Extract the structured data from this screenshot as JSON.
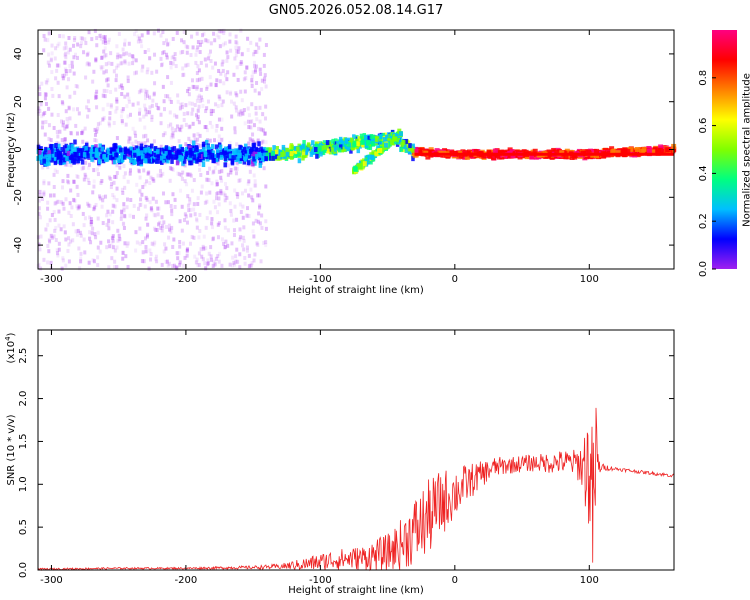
{
  "chart_data": [
    {
      "type": "heatmap",
      "title": "GN05.2026.052.08.14.G17",
      "xlabel": "Height of straight line (km)",
      "ylabel": "Frequency (Hz)",
      "xlim": [
        -310,
        163
      ],
      "ylim": [
        -50,
        50
      ],
      "xticks": [
        -300,
        -200,
        -100,
        0,
        100
      ],
      "yticks": [
        -40,
        -20,
        0,
        20,
        40
      ],
      "grid": false,
      "colorbar": {
        "label": "Normalized spectral amplitude",
        "range": [
          0,
          1
        ],
        "ticks": [
          0.0,
          0.2,
          0.4,
          0.6,
          0.8
        ],
        "colormap": [
          "#a020f0",
          "#0000ff",
          "#00bfff",
          "#00ff80",
          "#80ff00",
          "#ffff00",
          "#ff8000",
          "#ff0000",
          "#ff0080"
        ]
      },
      "ridge": [
        {
          "x": -310,
          "freq": -2
        },
        {
          "x": -140,
          "freq": -2
        },
        {
          "x": -120,
          "freq": -1
        },
        {
          "x": -90,
          "freq": 1
        },
        {
          "x": -60,
          "freq": 4
        },
        {
          "x": -45,
          "freq": 5
        },
        {
          "x": -30,
          "freq": -1
        },
        {
          "x": 0,
          "freq": -2
        },
        {
          "x": 100,
          "freq": -2
        },
        {
          "x": 163,
          "freq": 0
        }
      ],
      "secondary_ridge": [
        {
          "x": -75,
          "freq": -9
        },
        {
          "x": -50,
          "freq": 2
        },
        {
          "x": -40,
          "freq": 7
        }
      ]
    },
    {
      "type": "line",
      "title": "",
      "xlabel": "Height of straight line (km)",
      "ylabel": "SNR (10 * v/v)",
      "y_scale_label": "(x10",
      "y_scale_exponent": "4",
      "xlim": [
        -310,
        163
      ],
      "ylim": [
        0,
        2.8
      ],
      "xticks": [
        -300,
        -200,
        -100,
        0,
        100
      ],
      "yticks": [
        0.0,
        0.5,
        1.0,
        1.5,
        2.0,
        2.5
      ],
      "grid": false,
      "line_color": "#ee2222",
      "series": [
        {
          "x": [
            -310,
            -250,
            -200,
            -150,
            -130,
            -110,
            -90,
            -70,
            -50,
            -40,
            -30,
            -20,
            -10,
            0,
            10,
            20,
            30,
            40,
            50,
            60,
            70,
            80,
            90,
            95,
            100,
            103,
            105,
            107,
            110,
            120,
            140,
            163
          ],
          "y": [
            0.01,
            0.02,
            0.02,
            0.03,
            0.04,
            0.07,
            0.12,
            0.14,
            0.2,
            0.3,
            0.45,
            0.6,
            0.78,
            0.9,
            1.02,
            1.12,
            1.2,
            1.22,
            1.24,
            1.25,
            1.25,
            1.26,
            1.25,
            1.22,
            1.2,
            0.6,
            1.3,
            1.2,
            1.2,
            1.18,
            1.14,
            1.1
          ],
          "noise": [
            0.01,
            0.01,
            0.01,
            0.02,
            0.03,
            0.08,
            0.12,
            0.14,
            0.22,
            0.3,
            0.4,
            0.45,
            0.4,
            0.3,
            0.22,
            0.15,
            0.12,
            0.1,
            0.1,
            0.1,
            0.12,
            0.14,
            0.16,
            0.3,
            0.8,
            1.0,
            0.8,
            0.1,
            0.04,
            0.02,
            0.02,
            0.02
          ]
        }
      ]
    }
  ]
}
